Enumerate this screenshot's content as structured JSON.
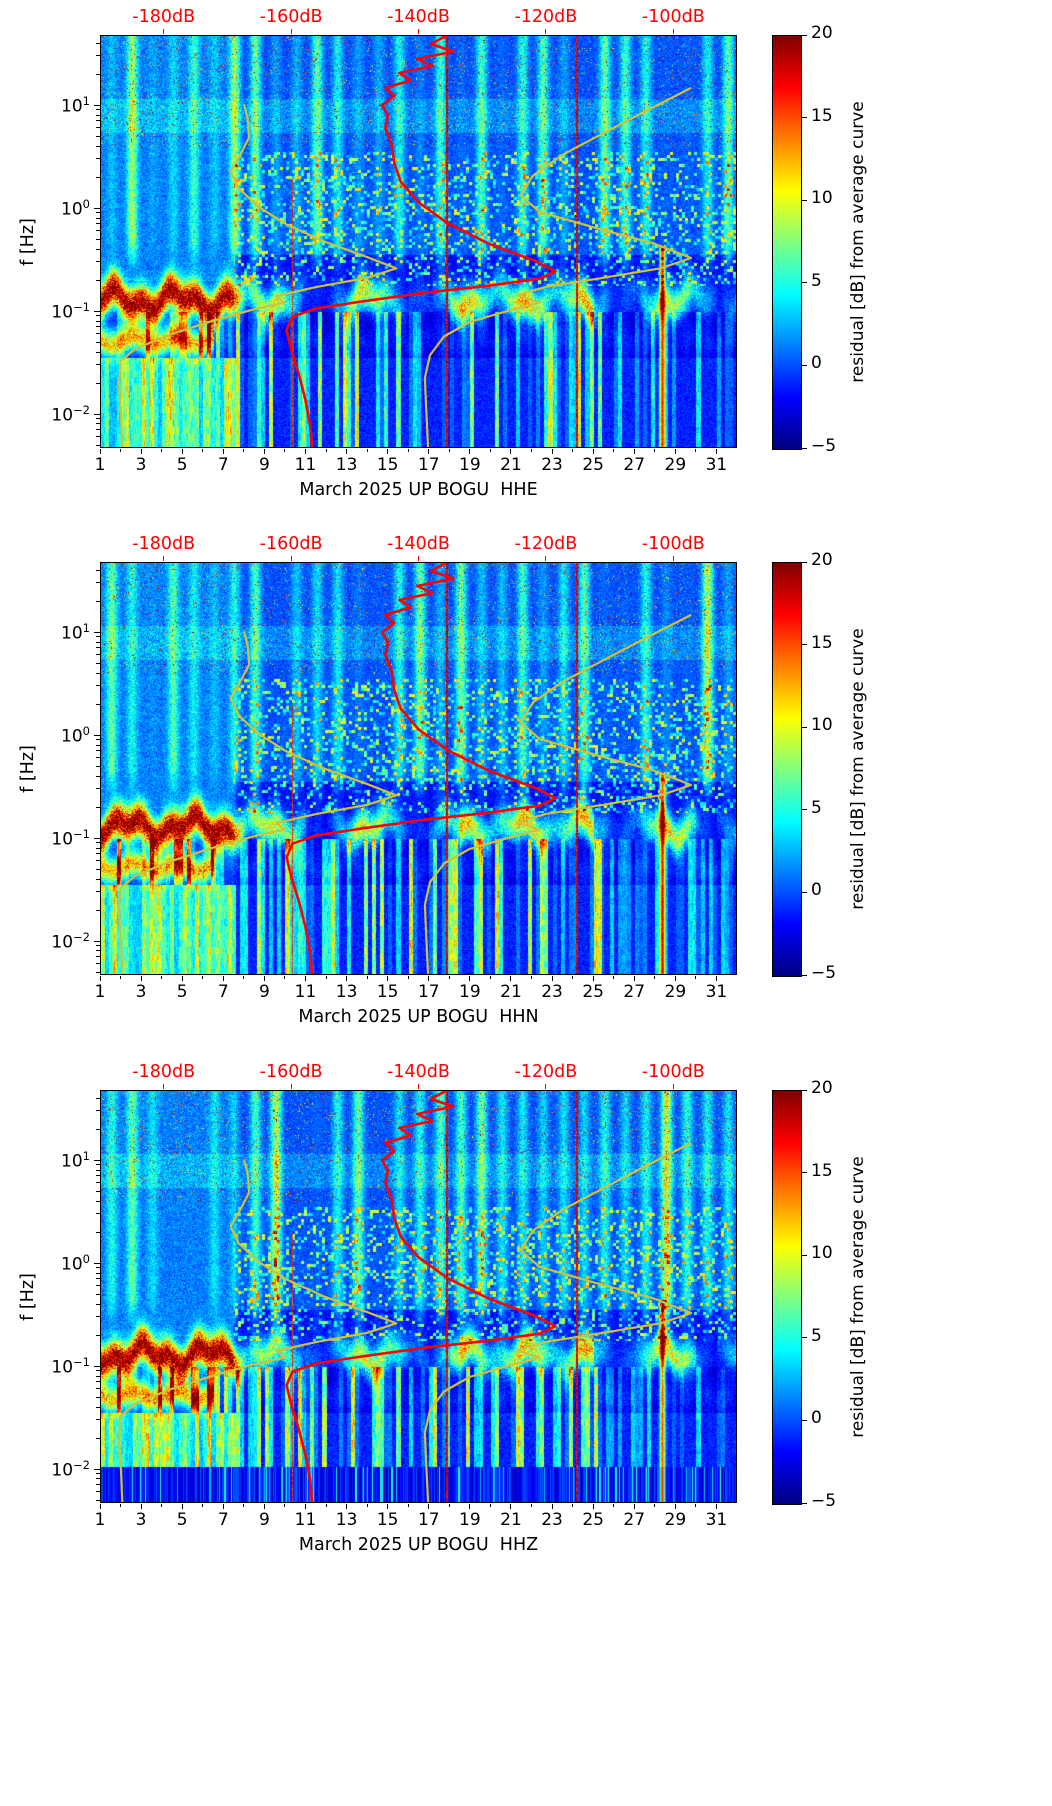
{
  "figure": {
    "ylabel": "f [Hz]",
    "ytick_base": "10",
    "y_ticks": [
      {
        "exp": "1"
      },
      {
        "exp": "0"
      },
      {
        "exp": "−1"
      },
      {
        "exp": "−2"
      }
    ],
    "x_tick_labels": [
      "1",
      "3",
      "5",
      "7",
      "9",
      "11",
      "13",
      "15",
      "17",
      "19",
      "21",
      "23",
      "25",
      "27",
      "29",
      "31"
    ],
    "top_axis": {
      "color": "#ff0000",
      "labels": [
        "-180dB",
        "-160dB",
        "-140dB",
        "-120dB",
        "-100dB"
      ],
      "db_values": [
        -180,
        -160,
        -140,
        -120,
        -100
      ],
      "axis_range_db": [
        -190,
        -90
      ]
    },
    "colorbar": {
      "label": "residual [dB] from average curve",
      "tick_labels": [
        "20",
        "15",
        "10",
        "5",
        "0",
        "−5"
      ],
      "tick_values": [
        20,
        15,
        10,
        5,
        0,
        -5
      ],
      "vmin": -5,
      "vmax": 20,
      "colormap": "jet",
      "gradient": [
        [
          "0%",
          "#000080"
        ],
        [
          "12.5%",
          "#0000ff"
        ],
        [
          "37.5%",
          "#00ffff"
        ],
        [
          "50%",
          "#80ff80"
        ],
        [
          "62.5%",
          "#ffff00"
        ],
        [
          "87.5%",
          "#ff0000"
        ],
        [
          "100%",
          "#800000"
        ]
      ]
    },
    "overlay_curves": {
      "note": "curve x maps to the top dB axis (-190 to -90 dB), y maps to log frequency axis (~48 Hz top to ~0.0047 Hz bottom)",
      "median": {
        "name": "average PSD curve",
        "color": "#ff0000",
        "points": [
          [
            0.545,
            0.0
          ],
          [
            0.52,
            0.022
          ],
          [
            0.555,
            0.04
          ],
          [
            0.498,
            0.058
          ],
          [
            0.522,
            0.075
          ],
          [
            0.47,
            0.092
          ],
          [
            0.488,
            0.11
          ],
          [
            0.448,
            0.128
          ],
          [
            0.462,
            0.148
          ],
          [
            0.443,
            0.17
          ],
          [
            0.452,
            0.195
          ],
          [
            0.448,
            0.225
          ],
          [
            0.458,
            0.265
          ],
          [
            0.462,
            0.31
          ],
          [
            0.472,
            0.355
          ],
          [
            0.5,
            0.405
          ],
          [
            0.545,
            0.455
          ],
          [
            0.61,
            0.505
          ],
          [
            0.68,
            0.545
          ],
          [
            0.715,
            0.572
          ],
          [
            0.69,
            0.59
          ],
          [
            0.61,
            0.607
          ],
          [
            0.505,
            0.625
          ],
          [
            0.412,
            0.645
          ],
          [
            0.34,
            0.662
          ],
          [
            0.302,
            0.682
          ],
          [
            0.293,
            0.715
          ],
          [
            0.3,
            0.76
          ],
          [
            0.312,
            0.82
          ],
          [
            0.322,
            0.88
          ],
          [
            0.33,
            0.945
          ],
          [
            0.333,
            1.0
          ]
        ]
      },
      "min": {
        "name": "minimum PSD curve",
        "color": "#cfc13a",
        "points": [
          [
            0.226,
            0.168
          ],
          [
            0.232,
            0.205
          ],
          [
            0.234,
            0.248
          ],
          [
            0.222,
            0.285
          ],
          [
            0.205,
            0.33
          ],
          [
            0.218,
            0.372
          ],
          [
            0.248,
            0.415
          ],
          [
            0.292,
            0.458
          ],
          [
            0.352,
            0.5
          ],
          [
            0.42,
            0.538
          ],
          [
            0.465,
            0.565
          ],
          [
            0.42,
            0.588
          ],
          [
            0.34,
            0.61
          ],
          [
            0.277,
            0.632
          ],
          [
            0.29,
            0.648
          ],
          [
            0.24,
            0.665
          ],
          [
            0.175,
            0.693
          ],
          [
            0.11,
            0.725
          ],
          [
            0.055,
            0.76
          ],
          [
            0.032,
            0.79
          ],
          [
            0.03,
            0.85
          ],
          [
            0.033,
            0.92
          ],
          [
            0.035,
            1.0
          ]
        ]
      },
      "max": {
        "name": "maximum PSD curve",
        "color": "#cfc13a",
        "points": [
          [
            0.928,
            0.128
          ],
          [
            0.852,
            0.188
          ],
          [
            0.79,
            0.238
          ],
          [
            0.726,
            0.29
          ],
          [
            0.68,
            0.34
          ],
          [
            0.66,
            0.388
          ],
          [
            0.69,
            0.428
          ],
          [
            0.78,
            0.468
          ],
          [
            0.87,
            0.505
          ],
          [
            0.928,
            0.54
          ],
          [
            0.88,
            0.565
          ],
          [
            0.79,
            0.588
          ],
          [
            0.7,
            0.61
          ],
          [
            0.655,
            0.63
          ],
          [
            0.69,
            0.648
          ],
          [
            0.64,
            0.668
          ],
          [
            0.58,
            0.695
          ],
          [
            0.54,
            0.73
          ],
          [
            0.518,
            0.775
          ],
          [
            0.51,
            0.83
          ],
          [
            0.512,
            0.9
          ],
          [
            0.515,
            1.0
          ]
        ]
      }
    }
  },
  "chart_data": [
    {
      "type": "heatmap",
      "channel": "HHE",
      "station": "BOGU",
      "network": "UP",
      "month": "March 2025",
      "xlabel": "March 2025 UP BOGU  HHE",
      "x_axis": {
        "unit": "day of month",
        "range": [
          1,
          32
        ],
        "ticks": [
          1,
          3,
          5,
          7,
          9,
          11,
          13,
          15,
          17,
          19,
          21,
          23,
          25,
          27,
          29,
          31
        ]
      },
      "y_axis": {
        "label": "f [Hz]",
        "scale": "log",
        "range_hz": [
          0.0047,
          48
        ],
        "decade_ticks": [
          10,
          1,
          0.1,
          0.01
        ]
      },
      "value": {
        "label": "residual [dB] from average curve",
        "range_db": [
          -5,
          20
        ],
        "colormap": "jet"
      },
      "top_axis_db": {
        "labels": [
          "-180dB",
          "-160dB",
          "-140dB",
          "-120dB",
          "-100dB"
        ],
        "range_db": [
          -190,
          -90
        ]
      },
      "overlays": [
        "average PSD curve (red) vs top dB axis",
        "minimum PSD curve (yellow)",
        "maximum PSD curve (yellow)"
      ],
      "notable_features": [
        "strong microseism band ~0.08-0.25 Hz on days 1-7, +15-20 dB (dark red)",
        "secondary band ~0.05 Hz on days 1-6, +10-15 dB",
        "daily vertical noise stripes above ~0.3 Hz all month",
        "bright narrow low-frequency columns below 0.1 Hz on days 8-25",
        "orange/red column near day 28 below ~0.3 Hz",
        "thin +20 dB vertical artifact lines near days 18 and 24"
      ],
      "seed": 11,
      "mask_below_hz": null
    },
    {
      "type": "heatmap",
      "channel": "HHN",
      "station": "BOGU",
      "network": "UP",
      "month": "March 2025",
      "xlabel": "March 2025 UP BOGU  HHN",
      "x_axis": {
        "unit": "day of month",
        "range": [
          1,
          32
        ],
        "ticks": [
          1,
          3,
          5,
          7,
          9,
          11,
          13,
          15,
          17,
          19,
          21,
          23,
          25,
          27,
          29,
          31
        ]
      },
      "y_axis": {
        "label": "f [Hz]",
        "scale": "log",
        "range_hz": [
          0.0047,
          48
        ],
        "decade_ticks": [
          10,
          1,
          0.1,
          0.01
        ]
      },
      "value": {
        "label": "residual [dB] from average curve",
        "range_db": [
          -5,
          20
        ],
        "colormap": "jet"
      },
      "top_axis_db": {
        "labels": [
          "-180dB",
          "-160dB",
          "-140dB",
          "-120dB",
          "-100dB"
        ],
        "range_db": [
          -190,
          -90
        ]
      },
      "overlays": [
        "average PSD curve (red) vs top dB axis",
        "minimum PSD curve (yellow)",
        "maximum PSD curve (yellow)"
      ],
      "notable_features": [
        "strong microseism band ~0.08-0.25 Hz on days 1-7, +15-20 dB (dark red)",
        "secondary band ~0.05 Hz on days 1-6, +10-15 dB",
        "daily vertical noise stripes above ~0.3 Hz all month",
        "bright narrow low-frequency columns below 0.1 Hz on days 8-25",
        "orange/red column near day 28 below ~0.3 Hz",
        "thin +20 dB vertical artifact lines near days 18 and 24"
      ],
      "seed": 22,
      "mask_below_hz": null
    },
    {
      "type": "heatmap",
      "channel": "HHZ",
      "station": "BOGU",
      "network": "UP",
      "month": "March 2025",
      "xlabel": "March 2025 UP BOGU  HHZ",
      "x_axis": {
        "unit": "day of month",
        "range": [
          1,
          32
        ],
        "ticks": [
          1,
          3,
          5,
          7,
          9,
          11,
          13,
          15,
          17,
          19,
          21,
          23,
          25,
          27,
          29,
          31
        ]
      },
      "y_axis": {
        "label": "f [Hz]",
        "scale": "log",
        "range_hz": [
          0.0047,
          48
        ],
        "decade_ticks": [
          10,
          1,
          0.1,
          0.01
        ]
      },
      "value": {
        "label": "residual [dB] from average curve",
        "range_db": [
          -5,
          20
        ],
        "colormap": "jet"
      },
      "top_axis_db": {
        "labels": [
          "-180dB",
          "-160dB",
          "-140dB",
          "-120dB",
          "-100dB"
        ],
        "range_db": [
          -190,
          -90
        ]
      },
      "overlays": [
        "average PSD curve (red) vs top dB axis",
        "minimum PSD curve (yellow)",
        "maximum PSD curve (yellow)"
      ],
      "notable_features": [
        "strong microseism band ~0.08-0.25 Hz on days 1-7, +15-20 dB (dark red)",
        "secondary band ~0.05 Hz on days 1-6, +10-15 dB",
        "daily vertical noise stripes above ~0.3 Hz all month",
        "bright narrow low-frequency columns below 0.1 Hz on days 8-25",
        "orange/red column near day 28 below ~0.3 Hz",
        "uniform striped / masked band below ~0.01 Hz (data gap artifact)"
      ],
      "seed": 33,
      "mask_below_hz": 0.0105
    }
  ]
}
